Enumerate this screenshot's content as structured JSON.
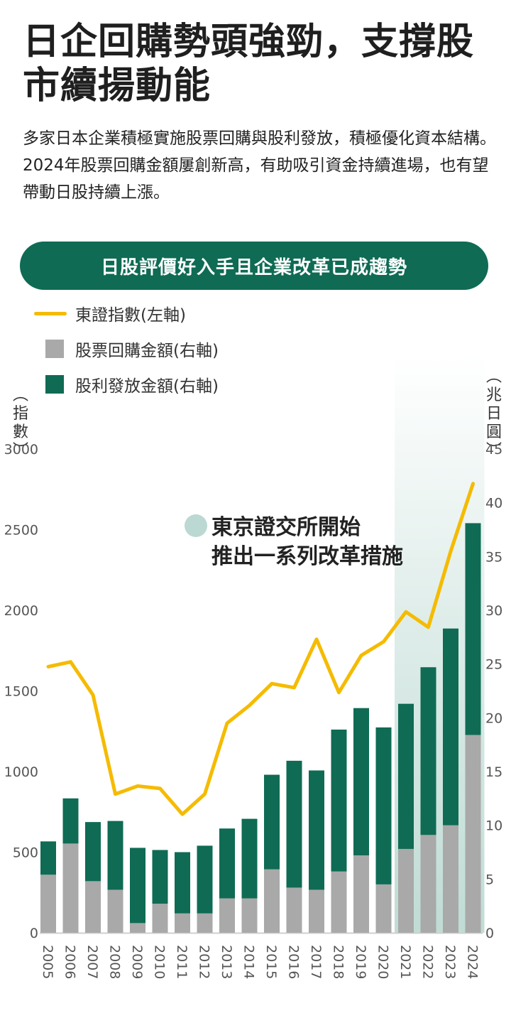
{
  "header": {
    "title": "日企回購勢頭強勁，支撐股市續揚動能",
    "subtitle": "多家日本企業積極實施股票回購與股利發放，積極優化資本結構。2024年股票回購金額屢創新高，有助吸引資金持續進場，也有望帶動日股持續上漲。"
  },
  "banner": {
    "text": "日股評價好入手且企業改革已成趨勢"
  },
  "legend": {
    "line_label": "東證指數(左軸)",
    "buyback_label": "股票回購金額(右軸)",
    "dividend_label": "股利發放金額(右軸)"
  },
  "colors": {
    "index_line": "#f5bb00",
    "buyback": "#a9a9a9",
    "dividend": "#0f6b54",
    "banner": "#0f6b54",
    "highlight": "#b9d8d0"
  },
  "chart_data": {
    "type": "bar",
    "stacked": true,
    "categories": [
      "2005",
      "2006",
      "2007",
      "2008",
      "2009",
      "2010",
      "2011",
      "2012",
      "2013",
      "2014",
      "2015",
      "2016",
      "2017",
      "2018",
      "2019",
      "2020",
      "2021",
      "2022",
      "2023",
      "2024"
    ],
    "series": [
      {
        "name": "股票回購金額(右軸)",
        "axis": "right",
        "values": [
          5.4,
          8.3,
          4.8,
          4.0,
          0.9,
          2.7,
          1.8,
          1.8,
          3.2,
          3.2,
          5.9,
          4.2,
          4.0,
          5.7,
          7.2,
          4.5,
          7.8,
          9.1,
          10.0,
          18.4
        ]
      },
      {
        "name": "股利發放金額(右軸)",
        "axis": "right",
        "values": [
          3.1,
          4.2,
          5.5,
          6.4,
          7.0,
          5.0,
          5.7,
          6.3,
          6.5,
          7.4,
          8.8,
          11.8,
          11.1,
          13.2,
          13.7,
          14.6,
          13.5,
          15.6,
          18.3,
          19.7
        ]
      },
      {
        "name": "東證指數(左軸)",
        "axis": "left",
        "type": "line",
        "values": [
          1650,
          1680,
          1475,
          860,
          910,
          895,
          735,
          860,
          1300,
          1410,
          1545,
          1520,
          1820,
          1490,
          1720,
          1805,
          1990,
          1895,
          2365,
          2785
        ]
      }
    ],
    "left_axis": {
      "label": "指數",
      "ylim": [
        0,
        3000
      ],
      "ticks": [
        0,
        500,
        1000,
        1500,
        2000,
        2500,
        3000
      ]
    },
    "right_axis": {
      "label": "兆日圓",
      "ylim": [
        0,
        45
      ],
      "ticks": [
        0,
        5,
        10,
        15,
        20,
        25,
        30,
        35,
        40,
        45
      ]
    },
    "highlight_range": [
      "2021",
      "2024"
    ],
    "annotation": {
      "text_line1": "東京證交所開始",
      "text_line2": "推出一系列改革措施"
    },
    "grid": false,
    "legend_position": "top-left"
  }
}
